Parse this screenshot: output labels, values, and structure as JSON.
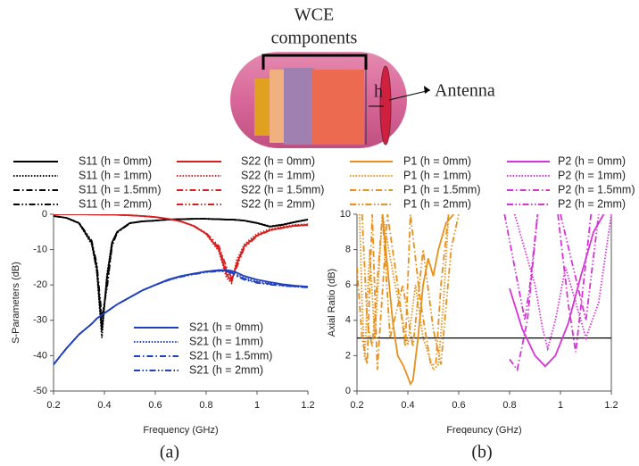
{
  "diagram": {
    "label_lines": [
      "WCE",
      "components"
    ],
    "h_label": "h",
    "antenna_label": "Antenna"
  },
  "panel_labels": [
    "(a)",
    "(b)"
  ],
  "chart_data": [
    {
      "type": "line",
      "xlabel": "Frequency (GHz)",
      "ylabel": "S-Parameters (dB)",
      "xlim": [
        0.2,
        1.2
      ],
      "xticks": [
        0.2,
        0.4,
        0.6,
        0.8,
        1.0,
        1.2
      ],
      "ylim": [
        -50,
        0
      ],
      "yticks": [
        0,
        -10,
        -20,
        -30,
        -40,
        -50
      ],
      "x": [
        0.2,
        0.25,
        0.3,
        0.35,
        0.37,
        0.39,
        0.41,
        0.43,
        0.45,
        0.5,
        0.55,
        0.6,
        0.65,
        0.7,
        0.75,
        0.8,
        0.85,
        0.88,
        0.9,
        0.92,
        0.95,
        1.0,
        1.05,
        1.1,
        1.15,
        1.2
      ],
      "series": [
        {
          "name": "S11  (h = 0mm)",
          "color": "#000000",
          "dash": "solid",
          "values": [
            -0.5,
            -1,
            -2.5,
            -8,
            -15,
            -33,
            -18,
            -8,
            -5,
            -2.5,
            -2,
            -1.8,
            -1.5,
            -1.4,
            -1.3,
            -1.3,
            -1.4,
            -1.5,
            -1.5,
            -1.6,
            -1.8,
            -2.5,
            -3.5,
            -3,
            -2.2,
            -1.5
          ]
        },
        {
          "name": "S11  (h = 1mm)",
          "color": "#000000",
          "dash": "dotted",
          "values": [
            -0.5,
            -1,
            -2.6,
            -8.5,
            -16,
            -35,
            -17,
            -8,
            -5,
            -2.5,
            -2,
            -1.8,
            -1.5,
            -1.4,
            -1.3,
            -1.3,
            -1.4,
            -1.5,
            -1.5,
            -1.6,
            -1.8,
            -2.4,
            -3.4,
            -2.9,
            -2.1,
            -1.5
          ]
        },
        {
          "name": "S11  (h = 1.5mm)",
          "color": "#000000",
          "dash": "dashdot",
          "values": [
            -0.5,
            -1,
            -2.5,
            -8,
            -16,
            -31,
            -20,
            -8.5,
            -5,
            -2.5,
            -2,
            -1.8,
            -1.5,
            -1.4,
            -1.3,
            -1.3,
            -1.4,
            -1.5,
            -1.5,
            -1.6,
            -1.8,
            -2.5,
            -3.5,
            -3,
            -2.2,
            -1.5
          ]
        },
        {
          "name": "S11  (h = 2mm)",
          "color": "#000000",
          "dash": "dashdotdot",
          "values": [
            -0.5,
            -1,
            -2.4,
            -7.5,
            -14,
            -29,
            -21,
            -9,
            -5.2,
            -2.6,
            -2,
            -1.8,
            -1.5,
            -1.4,
            -1.3,
            -1.3,
            -1.4,
            -1.5,
            -1.5,
            -1.6,
            -1.8,
            -2.5,
            -3.5,
            -3,
            -2.2,
            -1.5
          ]
        },
        {
          "name": "S22  (h = 0mm)",
          "color": "#d62020",
          "dash": "solid",
          "values": [
            0,
            0,
            0,
            -0.05,
            -0.05,
            -0.1,
            -0.1,
            -0.1,
            -0.15,
            -0.3,
            -0.5,
            -0.8,
            -1.3,
            -2,
            -3.3,
            -5.5,
            -10,
            -17,
            -19,
            -14,
            -9,
            -6,
            -4.5,
            -3.8,
            -3.2,
            -3
          ]
        },
        {
          "name": "S22  (h = 1mm)",
          "color": "#d62020",
          "dash": "dotted",
          "values": [
            0,
            0,
            0,
            -0.05,
            -0.05,
            -0.1,
            -0.1,
            -0.1,
            -0.15,
            -0.3,
            -0.5,
            -0.8,
            -1.3,
            -2,
            -3.3,
            -5.6,
            -10.5,
            -18,
            -19.5,
            -13,
            -8.5,
            -5.5,
            -4.2,
            -3.5,
            -3,
            -2.8
          ]
        },
        {
          "name": "S22  (h = 1.5mm)",
          "color": "#d62020",
          "dash": "dashdot",
          "values": [
            0,
            0,
            0,
            -0.05,
            -0.05,
            -0.1,
            -0.1,
            -0.1,
            -0.15,
            -0.3,
            -0.5,
            -0.8,
            -1.3,
            -2,
            -3.3,
            -5.4,
            -9.5,
            -16,
            -18.5,
            -14.5,
            -9,
            -6,
            -4.5,
            -3.8,
            -3.2,
            -3
          ]
        },
        {
          "name": "S22  (h = 2mm)",
          "color": "#d62020",
          "dash": "dashdotdot",
          "values": [
            0,
            0,
            0,
            -0.05,
            -0.05,
            -0.1,
            -0.1,
            -0.1,
            -0.15,
            -0.3,
            -0.5,
            -0.8,
            -1.3,
            -2,
            -3.2,
            -5.3,
            -9,
            -15,
            -18,
            -15,
            -9.5,
            -6.2,
            -4.6,
            -3.9,
            -3.3,
            -3.1
          ]
        },
        {
          "name": "S21  (h = 0mm)",
          "color": "#1f3fbf",
          "dash": "solid",
          "values": [
            -42.5,
            -38,
            -34,
            -31,
            -29.5,
            -28.5,
            -27.5,
            -26.5,
            -25.5,
            -23.5,
            -21.5,
            -20,
            -18.5,
            -17.5,
            -16.8,
            -16.2,
            -15.8,
            -15.8,
            -16,
            -16.5,
            -17.5,
            -18.5,
            -19.2,
            -19.8,
            -20.2,
            -20.5
          ]
        },
        {
          "name": "S21  (h = 1mm)",
          "color": "#1f3fbf",
          "dash": "dotted",
          "values": [
            -42.5,
            -38,
            -34,
            -31,
            -29.5,
            -28.5,
            -27.5,
            -26.5,
            -25.5,
            -23.5,
            -21.5,
            -20,
            -18.6,
            -17.6,
            -16.9,
            -16.3,
            -16,
            -16,
            -16.3,
            -17,
            -18,
            -19,
            -19.6,
            -20,
            -20.3,
            -20.5
          ]
        },
        {
          "name": "S21  (h = 1.5mm)",
          "color": "#1f3fbf",
          "dash": "dashdot",
          "values": [
            -42.5,
            -38,
            -34,
            -31,
            -29.5,
            -28.5,
            -27.5,
            -26.5,
            -25.5,
            -23.5,
            -21.5,
            -20,
            -18.6,
            -17.6,
            -16.9,
            -16.2,
            -15.9,
            -16,
            -16.5,
            -17.3,
            -18.3,
            -19.2,
            -19.7,
            -20.1,
            -20.4,
            -20.6
          ]
        },
        {
          "name": "S21  (h = 2mm)",
          "color": "#1f3fbf",
          "dash": "dashdotdot",
          "values": [
            -42.5,
            -38,
            -34,
            -31,
            -29.5,
            -28.5,
            -27.5,
            -26.5,
            -25.5,
            -23.5,
            -21.5,
            -20,
            -18.7,
            -17.7,
            -17,
            -16.4,
            -16.1,
            -16.2,
            -16.7,
            -17.5,
            -18.5,
            -19.4,
            -19.9,
            -20.2,
            -20.5,
            -20.7
          ]
        }
      ]
    },
    {
      "type": "line",
      "xlabel": "Freqeuncy (GHz)",
      "ylabel": "Axial Ratio (dB)",
      "xlim": [
        0.2,
        1.2
      ],
      "xticks": [
        0.2,
        0.4,
        0.6,
        0.8,
        1.0,
        1.2
      ],
      "ylim": [
        0,
        10
      ],
      "yticks": [
        0,
        2,
        4,
        6,
        8,
        10
      ],
      "hline": 3,
      "series": [
        {
          "name": "P1 (h = 0mm)",
          "color": "#e8901a",
          "dash": "solid",
          "x": [
            0.3,
            0.32,
            0.34,
            0.36,
            0.38,
            0.4,
            0.41,
            0.42,
            0.44,
            0.46,
            0.48,
            0.5,
            0.52,
            0.55,
            0.58
          ],
          "values": [
            10,
            7,
            4,
            2,
            1.5,
            0.8,
            0.4,
            0.6,
            3,
            6,
            7.5,
            6.5,
            8,
            9.5,
            10
          ]
        },
        {
          "name": "P1 (h = 1mm)",
          "color": "#e8901a",
          "dash": "dotted",
          "x": [
            0.21,
            0.22,
            0.23,
            0.25,
            0.27,
            0.3,
            0.35,
            0.38,
            0.4,
            0.43,
            0.46,
            0.5,
            0.52,
            0.54,
            0.56
          ],
          "values": [
            10,
            5,
            1.8,
            8,
            3,
            10,
            6,
            4,
            2.6,
            6,
            3,
            1.2,
            1.5,
            5,
            10
          ]
        },
        {
          "name": "P1 (h = 1.5mm)",
          "color": "#e8901a",
          "dash": "dashdot",
          "x": [
            0.2,
            0.22,
            0.24,
            0.26,
            0.28,
            0.32,
            0.36,
            0.39,
            0.41,
            0.45,
            0.49,
            0.51,
            0.53,
            0.56
          ],
          "values": [
            7,
            3,
            1.5,
            10,
            1.2,
            10,
            6,
            2.5,
            10,
            5,
            1.5,
            1.5,
            6,
            10
          ]
        },
        {
          "name": "P1 (h = 2mm)",
          "color": "#e8901a",
          "dash": "dashdotdot",
          "x": [
            0.22,
            0.24,
            0.26,
            0.3,
            0.33,
            0.38,
            0.42,
            0.46,
            0.5,
            0.53,
            0.57,
            0.6
          ],
          "values": [
            10,
            4,
            2.5,
            10,
            3,
            6,
            2.5,
            8,
            3.5,
            1.5,
            8,
            10
          ]
        },
        {
          "name": "P2 (h = 0mm)",
          "color": "#d633d6",
          "dash": "solid",
          "x": [
            0.8,
            0.85,
            0.9,
            0.94,
            0.98,
            1.03,
            1.08,
            1.13,
            1.17
          ],
          "values": [
            5.8,
            3.5,
            2,
            1.4,
            2,
            3.8,
            6.5,
            9,
            10
          ]
        },
        {
          "name": "P2 (h = 1mm)",
          "color": "#d633d6",
          "dash": "dotted",
          "x": [
            0.82,
            0.86,
            0.9,
            0.93,
            0.95,
            0.98,
            1.02,
            1.06,
            1.1,
            1.15,
            1.2
          ],
          "values": [
            10,
            8,
            6,
            3.5,
            2.4,
            4,
            7,
            5,
            3,
            5,
            10
          ]
        },
        {
          "name": "P2 (h = 1.5mm)",
          "color": "#d633d6",
          "dash": "dashdot",
          "x": [
            0.8,
            0.83,
            0.87,
            0.91,
            0.95,
            0.99,
            1.03,
            1.06,
            1.09,
            1.12
          ],
          "values": [
            1.8,
            1.2,
            4,
            10,
            null,
            10,
            5,
            2.2,
            6,
            10
          ]
        },
        {
          "name": "P2 (h = 2mm)",
          "color": "#d633d6",
          "dash": "dashdotdot",
          "x": [
            0.78,
            0.82,
            0.86,
            0.88,
            0.91,
            0.95,
            1.0,
            1.05,
            1.1,
            1.15
          ],
          "values": [
            10,
            7,
            4,
            6,
            10,
            null,
            10,
            7,
            4,
            10
          ]
        }
      ]
    }
  ]
}
